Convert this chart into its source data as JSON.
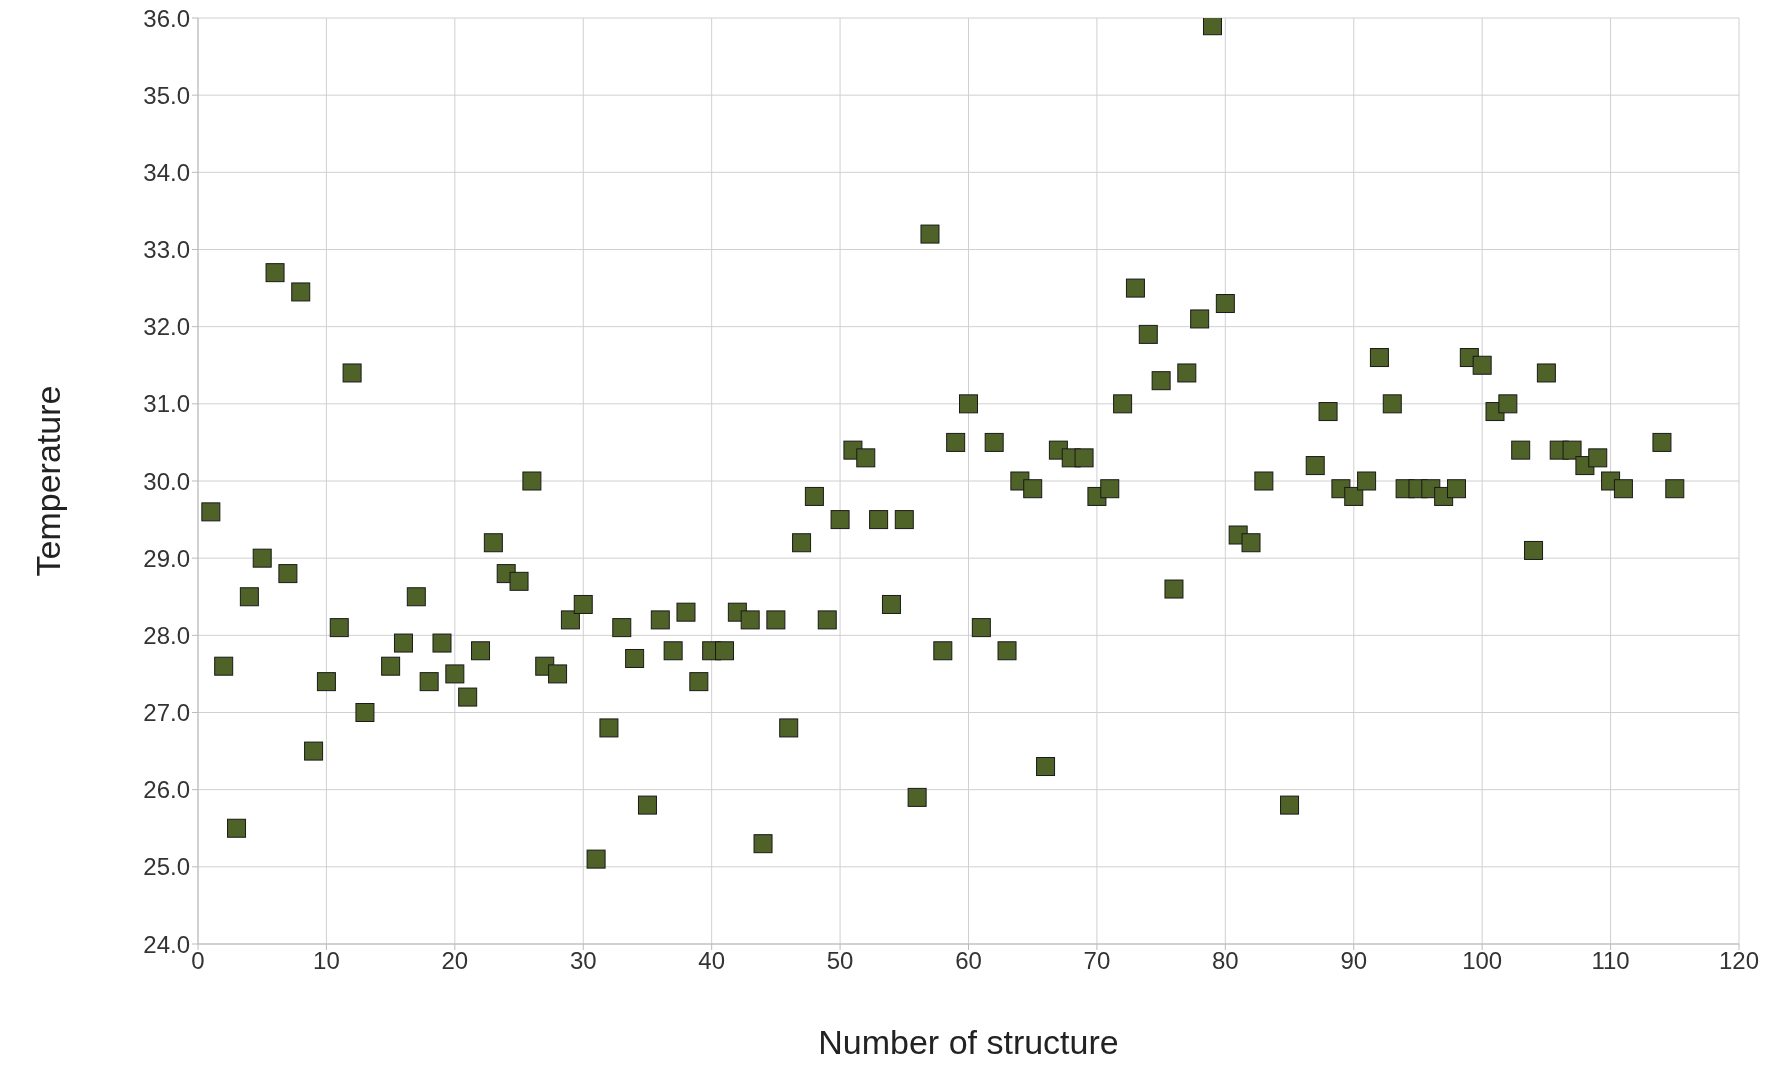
{
  "chart_data": {
    "type": "scatter",
    "xlabel": "Number of structure",
    "ylabel": "Temperature",
    "marker": "square",
    "grid": true,
    "legend": false,
    "xlim": [
      0,
      120
    ],
    "xticks": [
      0,
      10,
      20,
      30,
      40,
      50,
      60,
      70,
      80,
      90,
      100,
      110,
      120
    ],
    "ylim": [
      24,
      36
    ],
    "yticks": [
      {
        "value": 24,
        "label": "24.0"
      },
      {
        "value": 25,
        "label": "25.0"
      },
      {
        "value": 26,
        "label": "26.0"
      },
      {
        "value": 27,
        "label": "27.0"
      },
      {
        "value": 28,
        "label": "28.0"
      },
      {
        "value": 29,
        "label": "29.0"
      },
      {
        "value": 30,
        "label": "30.0"
      },
      {
        "value": 31,
        "label": "31.0"
      },
      {
        "value": 32,
        "label": "32.0"
      },
      {
        "value": 33,
        "label": "33.0"
      },
      {
        "value": 34,
        "label": "34.0"
      },
      {
        "value": 35,
        "label": "35.0"
      },
      {
        "value": 36,
        "label": "36.0"
      }
    ],
    "series": [
      {
        "color": "#4f6228",
        "x": [
          1,
          2,
          3,
          4,
          5,
          6,
          7,
          8,
          9,
          10,
          11,
          12,
          13,
          15,
          16,
          17,
          18,
          19,
          20,
          21,
          22,
          23,
          24,
          25,
          26,
          27,
          28,
          29,
          30,
          31,
          32,
          33,
          34,
          35,
          36,
          37,
          38,
          39,
          40,
          41,
          42,
          43,
          44,
          45,
          46,
          47,
          48,
          49,
          50,
          51,
          52,
          53,
          54,
          55,
          56,
          57,
          58,
          59,
          60,
          61,
          62,
          63,
          64,
          65,
          66,
          67,
          68,
          69,
          70,
          71,
          72,
          73,
          74,
          75,
          76,
          77,
          78,
          79,
          80,
          81,
          82,
          83,
          85,
          87,
          88,
          89,
          90,
          91,
          92,
          93,
          94,
          95,
          96,
          97,
          98,
          99,
          100,
          101,
          102,
          103,
          104,
          105,
          106,
          107,
          108,
          109,
          110,
          111,
          114,
          115
        ],
        "values": [
          29.6,
          27.6,
          25.5,
          28.5,
          29.0,
          32.7,
          28.8,
          32.45,
          26.5,
          27.4,
          28.1,
          31.4,
          27.0,
          27.6,
          27.9,
          28.5,
          27.4,
          27.9,
          27.5,
          27.2,
          27.8,
          29.2,
          28.8,
          28.7,
          30.0,
          27.6,
          27.5,
          28.2,
          28.4,
          25.1,
          26.8,
          28.1,
          27.7,
          25.8,
          28.2,
          27.8,
          28.3,
          27.4,
          27.8,
          27.8,
          28.3,
          28.2,
          25.3,
          28.2,
          26.8,
          29.2,
          29.8,
          28.2,
          29.5,
          30.4,
          30.3,
          29.5,
          28.4,
          29.5,
          25.9,
          33.2,
          27.8,
          30.5,
          31.0,
          28.1,
          30.5,
          27.8,
          30.0,
          29.9,
          26.3,
          30.4,
          30.3,
          30.3,
          29.8,
          29.9,
          31.0,
          32.5,
          31.9,
          31.3,
          28.6,
          31.4,
          32.1,
          35.9,
          32.3,
          29.3,
          29.2,
          30.0,
          25.8,
          30.2,
          30.9,
          29.9,
          29.8,
          30.0,
          31.6,
          31.0,
          29.9,
          29.9,
          29.9,
          29.8,
          29.9,
          31.6,
          31.5,
          30.9,
          31.0,
          30.4,
          29.1,
          31.4,
          30.4,
          30.4,
          30.2,
          30.3,
          30.0,
          29.9,
          30.5,
          29.9
        ]
      }
    ]
  }
}
